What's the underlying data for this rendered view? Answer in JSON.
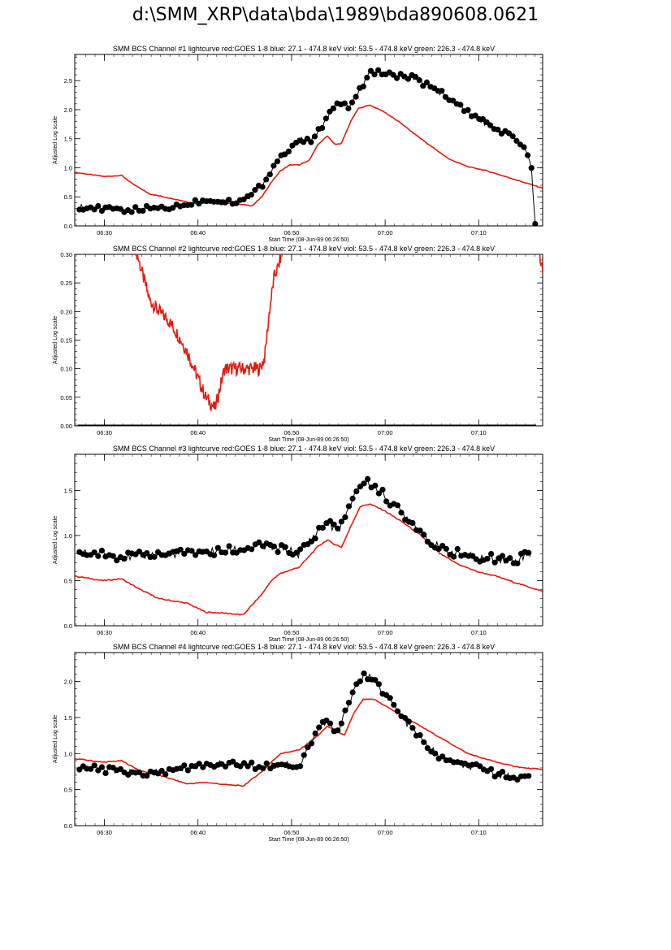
{
  "page_title": "d:\\SMM_XRP\\data\\bda\\1989\\bda890608.0621",
  "colors": {
    "goes": "#e8190e",
    "bcs": "#000000"
  },
  "chart_data": [
    {
      "type": "line",
      "title": "SMM BCS Channel #1 lightcurve  red:GOES 1-8  blue: 27.1 - 474.8 keV  viol: 53.5 - 474.8 keV  green: 226.3 - 474.8 keV",
      "ylabel": "Adjusted Log scale",
      "xlabel": "Start Time (08-Jun-89 06:26:50)",
      "x_ticks": [
        "06:30",
        "06:40",
        "06:50",
        "07:00",
        "07:10"
      ],
      "y_ticks": [
        "0.0",
        "0.5",
        "1.0",
        "1.5",
        "2.0",
        "2.5"
      ],
      "ylim": [
        0,
        2.95
      ],
      "series": [
        {
          "role": "goes",
          "x": [
            0,
            3.2,
            5,
            6.2,
            8,
            11,
            13,
            15,
            17,
            19,
            20,
            21,
            22,
            23,
            24,
            25,
            26,
            27,
            27.8,
            28.5,
            29.5,
            30.3,
            31.5,
            33,
            34,
            35,
            36,
            38,
            40,
            42,
            44,
            46,
            48,
            50
          ],
          "values": [
            0.92,
            0.85,
            0.87,
            0.72,
            0.55,
            0.45,
            0.38,
            0.42,
            0.38,
            0.35,
            0.5,
            0.75,
            0.95,
            1.05,
            1.05,
            1.12,
            1.4,
            1.55,
            1.4,
            1.42,
            1.8,
            2.02,
            2.08,
            1.97,
            1.86,
            1.75,
            1.62,
            1.38,
            1.15,
            1.02,
            0.95,
            0.85,
            0.75,
            0.65
          ]
        },
        {
          "role": "bcs",
          "x": [
            0.5,
            2,
            4,
            6,
            8,
            10,
            11.5,
            13,
            15,
            17,
            18.5,
            20,
            21.5,
            23,
            24,
            25,
            26.5,
            27.5,
            28.5,
            29.5,
            30.5,
            31.5,
            33,
            34,
            36,
            38,
            40,
            42,
            44,
            46,
            47.5,
            48.2,
            48.8,
            49.2
          ],
          "values": [
            0.33,
            0.3,
            0.28,
            0.27,
            0.3,
            0.32,
            0.35,
            0.42,
            0.45,
            0.42,
            0.48,
            0.7,
            1.1,
            1.35,
            1.48,
            1.45,
            1.7,
            2.05,
            2.1,
            2.05,
            2.35,
            2.62,
            2.65,
            2.6,
            2.55,
            2.4,
            2.2,
            1.95,
            1.75,
            1.6,
            1.45,
            1.3,
            1.0,
            0.05
          ]
        }
      ]
    },
    {
      "type": "line",
      "title": "SMM BCS Channel #2 lightcurve  red:GOES 1-8  blue: 27.1 - 474.8 keV  viol: 53.5 - 474.8 keV  green: 226.3 - 474.8 keV",
      "ylabel": "Adjusted Log scale",
      "xlabel": "Start Time (08-Jun-89 06:26:50)",
      "x_ticks": [
        "06:30",
        "06:40",
        "06:50",
        "07:00",
        "07:10"
      ],
      "y_ticks": [
        "0.00",
        "0.05",
        "0.10",
        "0.15",
        "0.20",
        "0.25",
        "0.30"
      ],
      "ylim": [
        0,
        0.3
      ],
      "series": [
        {
          "role": "goes",
          "x": [
            6.5,
            7,
            7.5,
            8,
            9,
            10,
            11,
            12,
            13,
            14,
            15,
            16,
            17,
            18,
            19,
            19.8,
            20.3,
            20.8,
            21.3,
            21.8,
            22.2
          ],
          "values": [
            0.31,
            0.28,
            0.25,
            0.22,
            0.2,
            0.185,
            0.16,
            0.13,
            0.09,
            0.05,
            0.03,
            0.1,
            0.1,
            0.1,
            0.1,
            0.1,
            0.12,
            0.2,
            0.26,
            0.28,
            0.31
          ]
        },
        {
          "role": "goes",
          "x": [
            49.6,
            50
          ],
          "values": [
            0.31,
            0.27
          ]
        },
        {
          "role": "bcs",
          "x": [
            0.3,
            49.3
          ],
          "values": [
            0.0,
            0.0
          ]
        }
      ]
    },
    {
      "type": "line",
      "title": "SMM BCS Channel #3 lightcurve  red:GOES 1-8  blue: 27.1 - 474.8 keV  viol: 53.5 - 474.8 keV  green: 226.3 - 474.8 keV",
      "ylabel": "Adjusted Log scale",
      "xlabel": "Start Time (08-Jun-89 06:26:50)",
      "x_ticks": [
        "06:30",
        "06:40",
        "06:50",
        "07:00",
        "07:10"
      ],
      "y_ticks": [
        "0.0",
        "0.5",
        "1.0",
        "1.5"
      ],
      "ylim": [
        0,
        1.9
      ],
      "series": [
        {
          "role": "goes",
          "x": [
            0,
            3,
            5,
            7,
            9,
            12,
            14,
            16,
            18,
            20,
            21,
            22,
            24,
            26,
            27,
            27.8,
            28.5,
            29.5,
            30.5,
            31.5,
            33,
            35,
            37,
            39,
            41,
            43,
            45,
            47,
            50
          ],
          "values": [
            0.55,
            0.5,
            0.52,
            0.4,
            0.3,
            0.25,
            0.15,
            0.14,
            0.12,
            0.35,
            0.5,
            0.58,
            0.65,
            0.88,
            0.95,
            0.9,
            0.87,
            1.1,
            1.32,
            1.35,
            1.28,
            1.15,
            1.0,
            0.8,
            0.68,
            0.6,
            0.55,
            0.48,
            0.38
          ]
        },
        {
          "role": "bcs",
          "x": [
            0.5,
            3,
            5,
            8,
            10,
            12,
            15,
            18,
            20,
            22,
            24,
            26,
            27,
            28,
            29,
            30,
            31,
            32,
            33,
            35,
            37,
            39,
            41,
            43,
            45,
            47,
            48,
            48.7
          ],
          "values": [
            0.8,
            0.8,
            0.76,
            0.78,
            0.8,
            0.8,
            0.82,
            0.85,
            0.88,
            0.85,
            0.8,
            1.05,
            1.15,
            1.05,
            1.2,
            1.5,
            1.6,
            1.55,
            1.45,
            1.25,
            1.05,
            0.85,
            0.8,
            0.75,
            0.75,
            0.72,
            0.78,
            0.8
          ]
        }
      ]
    },
    {
      "type": "line",
      "title": "SMM BCS Channel #4 lightcurve  red:GOES 1-8  blue: 27.1 - 474.8 keV  viol: 53.5 - 474.8 keV  green: 226.3 - 474.8 keV",
      "ylabel": "Adjusted Log scale",
      "xlabel": "Start Time (08-Jun-89 06:26:50)",
      "x_ticks": [
        "06:30",
        "06:40",
        "06:50",
        "07:00",
        "07:10"
      ],
      "y_ticks": [
        "0.0",
        "0.5",
        "1.0",
        "1.5",
        "2.0"
      ],
      "ylim": [
        0,
        2.4
      ],
      "series": [
        {
          "role": "goes",
          "x": [
            0,
            3,
            5,
            7,
            9,
            12,
            14,
            16,
            18,
            20,
            21,
            22,
            24,
            26,
            27,
            28,
            28.8,
            29.8,
            30.8,
            32,
            34,
            36,
            38,
            40,
            42,
            44,
            46,
            48,
            50
          ],
          "values": [
            0.93,
            0.88,
            0.9,
            0.76,
            0.7,
            0.58,
            0.6,
            0.57,
            0.55,
            0.75,
            0.88,
            1.0,
            1.05,
            1.25,
            1.38,
            1.3,
            1.25,
            1.55,
            1.75,
            1.75,
            1.6,
            1.45,
            1.3,
            1.15,
            1.0,
            0.92,
            0.85,
            0.8,
            0.78
          ]
        },
        {
          "role": "bcs",
          "x": [
            0.5,
            3,
            5,
            8,
            10,
            12,
            15,
            18,
            20,
            22,
            24,
            26,
            27,
            28,
            29,
            30,
            31,
            32,
            33,
            35,
            37,
            39,
            41,
            43,
            45,
            47,
            48,
            48.7
          ],
          "values": [
            0.8,
            0.78,
            0.75,
            0.72,
            0.75,
            0.8,
            0.85,
            0.85,
            0.8,
            0.88,
            0.82,
            1.35,
            1.45,
            1.25,
            1.6,
            1.95,
            2.1,
            2.0,
            1.85,
            1.5,
            1.2,
            0.95,
            0.85,
            0.8,
            0.72,
            0.68,
            0.65,
            0.72
          ]
        }
      ]
    }
  ]
}
